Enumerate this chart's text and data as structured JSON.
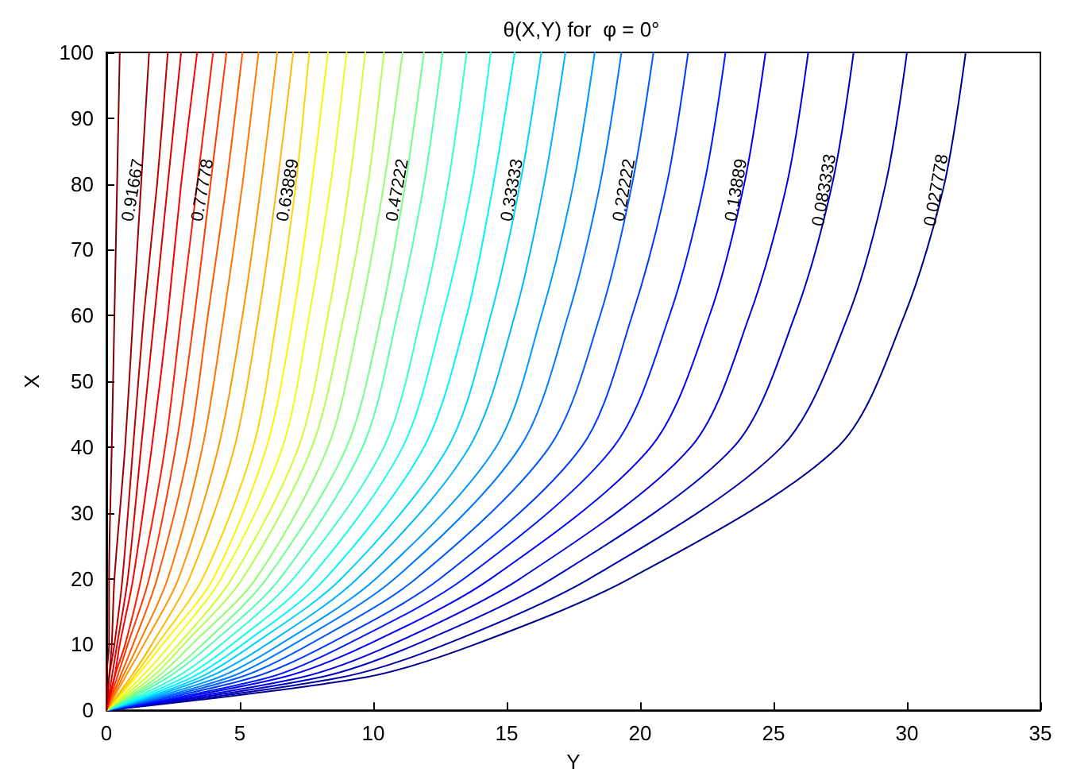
{
  "chart_data": {
    "type": "line",
    "title": "θ(X,Y) for  φ = 0°",
    "xlabel": "Y",
    "ylabel": "X",
    "xlim": [
      0,
      35
    ],
    "xticks": [
      0,
      5,
      10,
      15,
      20,
      25,
      30,
      35
    ],
    "ylim": [
      0,
      100
    ],
    "yticks": [
      0,
      10,
      20,
      30,
      40,
      50,
      60,
      70,
      80,
      90,
      100
    ],
    "grid": false,
    "legend": false,
    "marker": "none",
    "line_style": "solid",
    "series": [
      {
        "name": "0.027778",
        "color": "#00008f",
        "x": [
          0,
          9.7,
          13.8,
          19.6,
          27.4,
          29.9,
          31.4,
          32.2
        ],
        "values": [
          0,
          5,
          10,
          20,
          40,
          60,
          80,
          100
        ]
      },
      {
        "color": "#0000aa",
        "x": [
          0,
          8.8,
          12.7,
          18.1,
          25.3,
          27.8,
          29.2,
          30.0
        ],
        "values": [
          0,
          5,
          10,
          20,
          40,
          60,
          80,
          100
        ]
      },
      {
        "name": "0.083333",
        "color": "#0000c5",
        "x": [
          0,
          8.0,
          11.6,
          16.7,
          23.5,
          25.8,
          27.2,
          28.0
        ],
        "values": [
          0,
          5,
          10,
          20,
          40,
          60,
          80,
          100
        ]
      },
      {
        "color": "#0000e0",
        "x": [
          0,
          7.3,
          10.7,
          15.5,
          21.9,
          24.1,
          25.5,
          26.3
        ],
        "values": [
          0,
          5,
          10,
          20,
          40,
          60,
          80,
          100
        ]
      },
      {
        "name": "0.13889",
        "color": "#0000fc",
        "x": [
          0,
          6.6,
          9.8,
          14.4,
          20.4,
          22.6,
          23.9,
          24.7
        ],
        "values": [
          0,
          5,
          10,
          20,
          40,
          60,
          80,
          100
        ]
      },
      {
        "color": "#001bff",
        "x": [
          0,
          6.1,
          9.0,
          13.4,
          19.0,
          21.1,
          22.4,
          23.2
        ],
        "values": [
          0,
          5,
          10,
          20,
          40,
          60,
          80,
          100
        ]
      },
      {
        "color": "#003aff",
        "x": [
          0,
          5.5,
          8.3,
          12.5,
          17.8,
          19.7,
          21.0,
          21.8
        ],
        "values": [
          0,
          5,
          10,
          20,
          40,
          60,
          80,
          100
        ]
      },
      {
        "name": "0.22222",
        "color": "#0059ff",
        "x": [
          0,
          5.0,
          7.6,
          11.6,
          16.6,
          18.5,
          19.7,
          20.5
        ],
        "values": [
          0,
          5,
          10,
          20,
          40,
          60,
          80,
          100
        ]
      },
      {
        "color": "#0078ff",
        "x": [
          0,
          4.6,
          7.0,
          10.8,
          15.5,
          17.3,
          18.5,
          19.3
        ],
        "values": [
          0,
          5,
          10,
          20,
          40,
          60,
          80,
          100
        ]
      },
      {
        "color": "#0097ff",
        "x": [
          0,
          4.2,
          6.5,
          10.1,
          14.6,
          16.3,
          17.5,
          18.3
        ],
        "values": [
          0,
          5,
          10,
          20,
          40,
          60,
          80,
          100
        ]
      },
      {
        "color": "#00b5ff",
        "x": [
          0,
          3.8,
          6.0,
          9.4,
          13.6,
          15.3,
          16.4,
          17.2
        ],
        "values": [
          0,
          5,
          10,
          20,
          40,
          60,
          80,
          100
        ]
      },
      {
        "name": "0.33333",
        "color": "#00d4ff",
        "x": [
          0,
          3.5,
          5.5,
          8.8,
          12.8,
          14.4,
          15.5,
          16.3
        ],
        "values": [
          0,
          5,
          10,
          20,
          40,
          60,
          80,
          100
        ]
      },
      {
        "color": "#00f3ff",
        "x": [
          0,
          3.2,
          5.1,
          8.2,
          11.9,
          13.5,
          14.5,
          15.3
        ],
        "values": [
          0,
          5,
          10,
          20,
          40,
          60,
          80,
          100
        ]
      },
      {
        "color": "#13ffec",
        "x": [
          0,
          2.9,
          4.7,
          7.6,
          11.1,
          12.6,
          13.7,
          14.4
        ],
        "values": [
          0,
          5,
          10,
          20,
          40,
          60,
          80,
          100
        ]
      },
      {
        "color": "#32ffcd",
        "x": [
          0,
          2.6,
          4.3,
          7.0,
          10.4,
          11.8,
          12.8,
          13.5
        ],
        "values": [
          0,
          5,
          10,
          20,
          40,
          60,
          80,
          100
        ]
      },
      {
        "color": "#51ffae",
        "x": [
          0,
          2.3,
          3.9,
          6.5,
          9.6,
          10.9,
          11.9,
          12.6
        ],
        "values": [
          0,
          5,
          10,
          20,
          40,
          60,
          80,
          100
        ]
      },
      {
        "name": "0.47222",
        "color": "#70ff8f",
        "x": [
          0,
          2.1,
          3.6,
          6.0,
          9.0,
          10.3,
          11.2,
          11.9
        ],
        "values": [
          0,
          5,
          10,
          20,
          40,
          60,
          80,
          100
        ]
      },
      {
        "color": "#8fff70",
        "x": [
          0,
          1.9,
          3.2,
          5.6,
          8.3,
          9.5,
          10.4,
          11.1
        ],
        "values": [
          0,
          5,
          10,
          20,
          40,
          60,
          80,
          100
        ]
      },
      {
        "color": "#aeff51",
        "x": [
          0,
          1.7,
          2.9,
          5.1,
          7.7,
          8.9,
          9.8,
          10.4
        ],
        "values": [
          0,
          5,
          10,
          20,
          40,
          60,
          80,
          100
        ]
      },
      {
        "color": "#cdff32",
        "x": [
          0,
          1.5,
          2.7,
          4.7,
          7.2,
          8.3,
          9.1,
          9.7
        ],
        "values": [
          0,
          5,
          10,
          20,
          40,
          60,
          80,
          100
        ]
      },
      {
        "color": "#ecff13",
        "x": [
          0,
          1.3,
          2.4,
          4.3,
          6.6,
          7.6,
          8.4,
          9.0
        ],
        "values": [
          0,
          5,
          10,
          20,
          40,
          60,
          80,
          100
        ]
      },
      {
        "color": "#fff400",
        "x": [
          0,
          1.1,
          2.1,
          4.0,
          6.0,
          7.0,
          7.7,
          8.3
        ],
        "values": [
          0,
          5,
          10,
          20,
          40,
          60,
          80,
          100
        ]
      },
      {
        "name": "0.63889",
        "color": "#ffd500",
        "x": [
          0,
          1.0,
          1.9,
          3.6,
          5.5,
          6.4,
          7.1,
          7.6
        ],
        "values": [
          0,
          5,
          10,
          20,
          40,
          60,
          80,
          100
        ]
      },
      {
        "color": "#ffb600",
        "x": [
          0,
          0.9,
          1.7,
          3.1,
          4.8,
          5.7,
          6.4,
          7.0
        ],
        "values": [
          0,
          5,
          10,
          20,
          40,
          60,
          80,
          100
        ]
      },
      {
        "color": "#ff9700",
        "x": [
          0,
          0.7,
          1.4,
          2.7,
          4.2,
          5.1,
          5.8,
          6.4
        ],
        "values": [
          0,
          5,
          10,
          20,
          40,
          60,
          80,
          100
        ]
      },
      {
        "color": "#ff7800",
        "x": [
          0,
          0.6,
          1.2,
          2.3,
          3.6,
          4.4,
          5.1,
          5.7
        ],
        "values": [
          0,
          5,
          10,
          20,
          40,
          60,
          80,
          100
        ]
      },
      {
        "color": "#ff5900",
        "x": [
          0,
          0.5,
          1.0,
          1.9,
          3.1,
          3.8,
          4.5,
          5.1
        ],
        "values": [
          0,
          5,
          10,
          20,
          40,
          60,
          80,
          100
        ]
      },
      {
        "name": "0.77778",
        "color": "#ff3a00",
        "x": [
          0,
          0.4,
          0.8,
          1.6,
          2.6,
          3.3,
          3.9,
          4.5
        ],
        "values": [
          0,
          5,
          10,
          20,
          40,
          60,
          80,
          100
        ]
      },
      {
        "color": "#ff1b00",
        "x": [
          0,
          0.3,
          0.7,
          1.3,
          2.2,
          2.8,
          3.4,
          4.0
        ],
        "values": [
          0,
          5,
          10,
          20,
          40,
          60,
          80,
          100
        ]
      },
      {
        "color": "#fb0000",
        "x": [
          0,
          0.3,
          0.5,
          1.0,
          1.7,
          2.3,
          2.8,
          3.4
        ],
        "values": [
          0,
          5,
          10,
          20,
          40,
          60,
          80,
          100
        ]
      },
      {
        "color": "#dc0000",
        "x": [
          0,
          0.2,
          0.4,
          0.8,
          1.3,
          1.8,
          2.3,
          2.8
        ],
        "values": [
          0,
          5,
          10,
          20,
          40,
          60,
          80,
          100
        ]
      },
      {
        "color": "#bd0000",
        "x": [
          0,
          0.1,
          0.3,
          0.6,
          1.0,
          1.4,
          1.9,
          2.3
        ],
        "values": [
          0,
          5,
          10,
          20,
          40,
          60,
          80,
          100
        ]
      },
      {
        "name": "0.91667",
        "color": "#9e0000",
        "x": [
          0,
          0.1,
          0.2,
          0.3,
          0.7,
          1.0,
          1.3,
          1.6
        ],
        "values": [
          0,
          5,
          10,
          20,
          40,
          60,
          80,
          100
        ]
      },
      {
        "color": "#800000",
        "x": [
          0,
          0.0,
          0.1,
          0.1,
          0.2,
          0.3,
          0.4,
          0.5
        ],
        "values": [
          0,
          5,
          10,
          20,
          40,
          60,
          80,
          100
        ]
      }
    ]
  }
}
